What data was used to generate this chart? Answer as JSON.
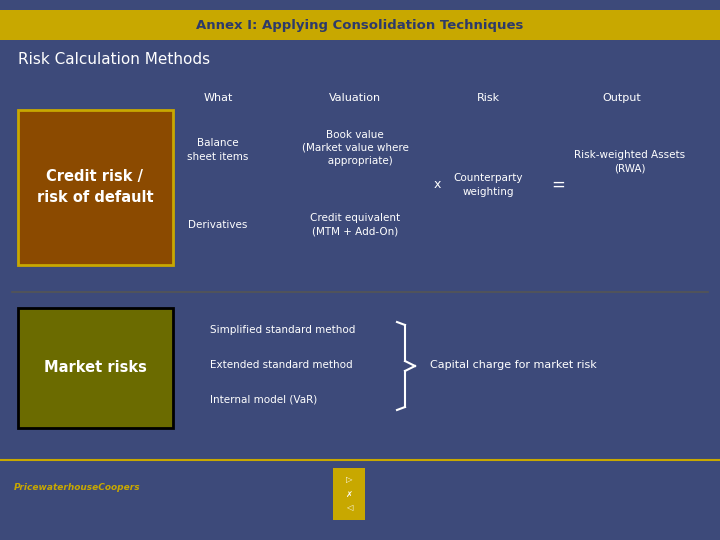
{
  "bg_color": "#3d4a7a",
  "header_bg": "#c8a800",
  "header_text": "Annex I: Applying Consolidation Techniques",
  "header_text_color": "#2d3a6a",
  "title_text": "Risk Calculation Methods",
  "title_text_color": "#ffffff",
  "credit_box_color": "#8b4a00",
  "credit_box_text": "Credit risk /\nrisk of default",
  "credit_box_edge": "#c8a800",
  "market_box_color": "#6b6b00",
  "market_box_text": "Market risks",
  "market_box_edge": "#000000",
  "col_headers": [
    "What",
    "Valuation",
    "Risk",
    "Output"
  ],
  "col_header_color": "#ffffff",
  "text_color": "#ffffff",
  "separator_color": "#555555",
  "nav_box_color": "#c8a800",
  "footer_line_color": "#c8a800",
  "pwc_text_color": "#c8a800"
}
